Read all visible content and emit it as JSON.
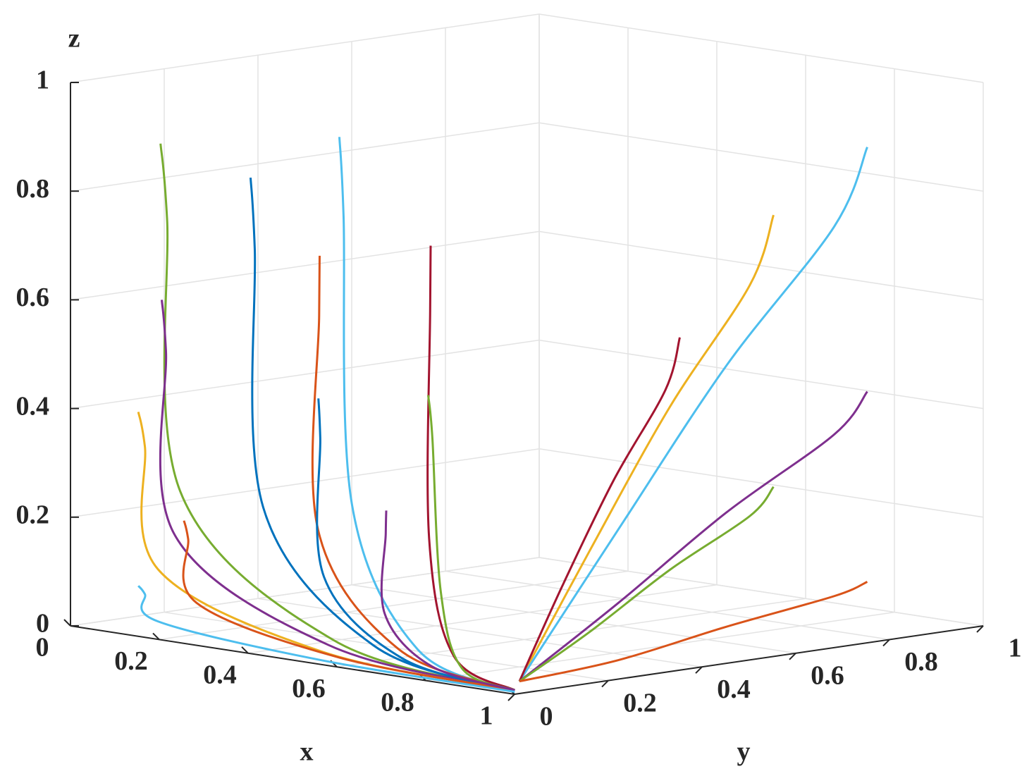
{
  "chart_data": {
    "type": "line3d",
    "xlabel": "x",
    "ylabel": "y",
    "zlabel": "z",
    "xlim": [
      0,
      1
    ],
    "ylim": [
      0,
      1
    ],
    "zlim": [
      0,
      1
    ],
    "xticks": [
      0,
      0.2,
      0.4,
      0.6,
      0.8,
      1
    ],
    "yticks": [
      0,
      0.2,
      0.4,
      0.6,
      0.8,
      1
    ],
    "zticks": [
      0,
      0.2,
      0.4,
      0.6,
      0.8,
      1
    ],
    "grid": true,
    "series": [
      {
        "color": "#77AC30",
        "x": [
          0.15,
          0.17,
          0.21,
          0.575,
          0.99
        ],
        "y": [
          0.05,
          0.045,
          0.035,
          0.015,
          0.01
        ],
        "z": [
          0.9,
          0.765,
          0.27,
          0.045,
          0.005
        ]
      },
      {
        "color": "#0072BD",
        "x": [
          0.3,
          0.32,
          0.36,
          0.65,
          0.99
        ],
        "y": [
          0.1,
          0.09,
          0.07,
          0.03,
          0.01
        ],
        "z": [
          0.85,
          0.7225,
          0.255,
          0.0425,
          0.005
        ]
      },
      {
        "color": "#4DBEEE",
        "x": [
          0.5,
          0.52,
          0.56,
          0.75,
          0.99
        ],
        "y": [
          0.1,
          0.09,
          0.07,
          0.03,
          0.01
        ],
        "z": [
          0.95,
          0.8075,
          0.285,
          0.0475,
          0.005
        ]
      },
      {
        "color": "#7E2F8E",
        "x": [
          0.1,
          0.12,
          0.16,
          0.55,
          0.99
        ],
        "y": [
          0.1,
          0.09,
          0.07,
          0.03,
          0.01
        ],
        "z": [
          0.6,
          0.51,
          0.18,
          0.03,
          0.005
        ]
      },
      {
        "color": "#D95319",
        "x": [
          0.35,
          0.37,
          0.41,
          0.675,
          0.99
        ],
        "y": [
          0.2,
          0.18,
          0.14,
          0.06,
          0.01
        ],
        "z": [
          0.7,
          0.595,
          0.21,
          0.035,
          0.005
        ]
      },
      {
        "color": "#A2142F",
        "x": [
          0.6,
          0.62,
          0.66,
          0.8,
          0.99
        ],
        "y": [
          0.2,
          0.18,
          0.14,
          0.06,
          0.01
        ],
        "z": [
          0.75,
          0.6375,
          0.225,
          0.0375,
          0.005
        ]
      },
      {
        "color": "#EDB120",
        "x": [
          0.1,
          0.12,
          0.16,
          0.55,
          0.99
        ],
        "y": [
          0.05,
          0.045,
          0.035,
          0.015,
          0.01
        ],
        "z": [
          0.4,
          0.34,
          0.12,
          0.02,
          0.005
        ]
      },
      {
        "color": "#0072BD",
        "x": [
          0.4,
          0.42,
          0.46,
          0.7,
          0.99
        ],
        "y": [
          0.15,
          0.135,
          0.105,
          0.045,
          0.01
        ],
        "z": [
          0.45,
          0.3825,
          0.135,
          0.0225,
          0.005
        ]
      },
      {
        "color": "#77AC30",
        "x": [
          0.7,
          0.72,
          0.76,
          0.85,
          0.99
        ],
        "y": [
          0.1,
          0.09,
          0.07,
          0.03,
          0.01
        ],
        "z": [
          0.5,
          0.425,
          0.15,
          0.025,
          0.005
        ]
      },
      {
        "color": "#D95319",
        "x": [
          0.15,
          0.17,
          0.21,
          0.575,
          0.99
        ],
        "y": [
          0.1,
          0.09,
          0.07,
          0.03,
          0.01
        ],
        "z": [
          0.2,
          0.17,
          0.06,
          0.01,
          0.005
        ]
      },
      {
        "color": "#7E2F8E",
        "x": [
          0.5,
          0.52,
          0.56,
          0.75,
          0.99
        ],
        "y": [
          0.2,
          0.18,
          0.14,
          0.06,
          0.01
        ],
        "z": [
          0.25,
          0.2125,
          0.075,
          0.0125,
          0.005
        ]
      },
      {
        "color": "#4DBEEE",
        "x": [
          0.1,
          0.12,
          0.16,
          0.55,
          0.99
        ],
        "y": [
          0.05,
          0.045,
          0.035,
          0.015,
          0.01
        ],
        "z": [
          0.08,
          0.068,
          0.024,
          0.004,
          0.002
        ]
      },
      {
        "color": "#EDB120",
        "x": [
          0.95,
          0.96,
          0.97,
          0.98,
          0.99
        ],
        "y": [
          0.6,
          0.54,
          0.36,
          0.18,
          0.02
        ],
        "z": [
          0.8,
          0.68,
          0.48,
          0.24,
          0.02
        ]
      },
      {
        "color": "#4DBEEE",
        "x": [
          0.95,
          0.96,
          0.97,
          0.98,
          0.99
        ],
        "y": [
          0.8,
          0.72,
          0.48,
          0.24,
          0.02
        ],
        "z": [
          0.9,
          0.765,
          0.54,
          0.27,
          0.02
        ]
      },
      {
        "color": "#A2142F",
        "x": [
          0.95,
          0.96,
          0.97,
          0.98,
          0.99
        ],
        "y": [
          0.4,
          0.36,
          0.24,
          0.12,
          0.02
        ],
        "z": [
          0.6,
          0.51,
          0.36,
          0.18,
          0.02
        ]
      },
      {
        "color": "#7E2F8E",
        "x": [
          0.95,
          0.96,
          0.97,
          0.98,
          0.99
        ],
        "y": [
          0.8,
          0.72,
          0.48,
          0.24,
          0.02
        ],
        "z": [
          0.45,
          0.3825,
          0.27,
          0.135,
          0.02
        ]
      },
      {
        "color": "#77AC30",
        "x": [
          0.95,
          0.96,
          0.97,
          0.98,
          0.99
        ],
        "y": [
          0.6,
          0.54,
          0.36,
          0.18,
          0.02
        ],
        "z": [
          0.3,
          0.255,
          0.18,
          0.09,
          0.02
        ]
      },
      {
        "color": "#D95319",
        "x": [
          0.95,
          0.96,
          0.97,
          0.98,
          0.99
        ],
        "y": [
          0.8,
          0.72,
          0.48,
          0.24,
          0.02
        ],
        "z": [
          0.1,
          0.085,
          0.06,
          0.03,
          0.02
        ]
      }
    ]
  }
}
